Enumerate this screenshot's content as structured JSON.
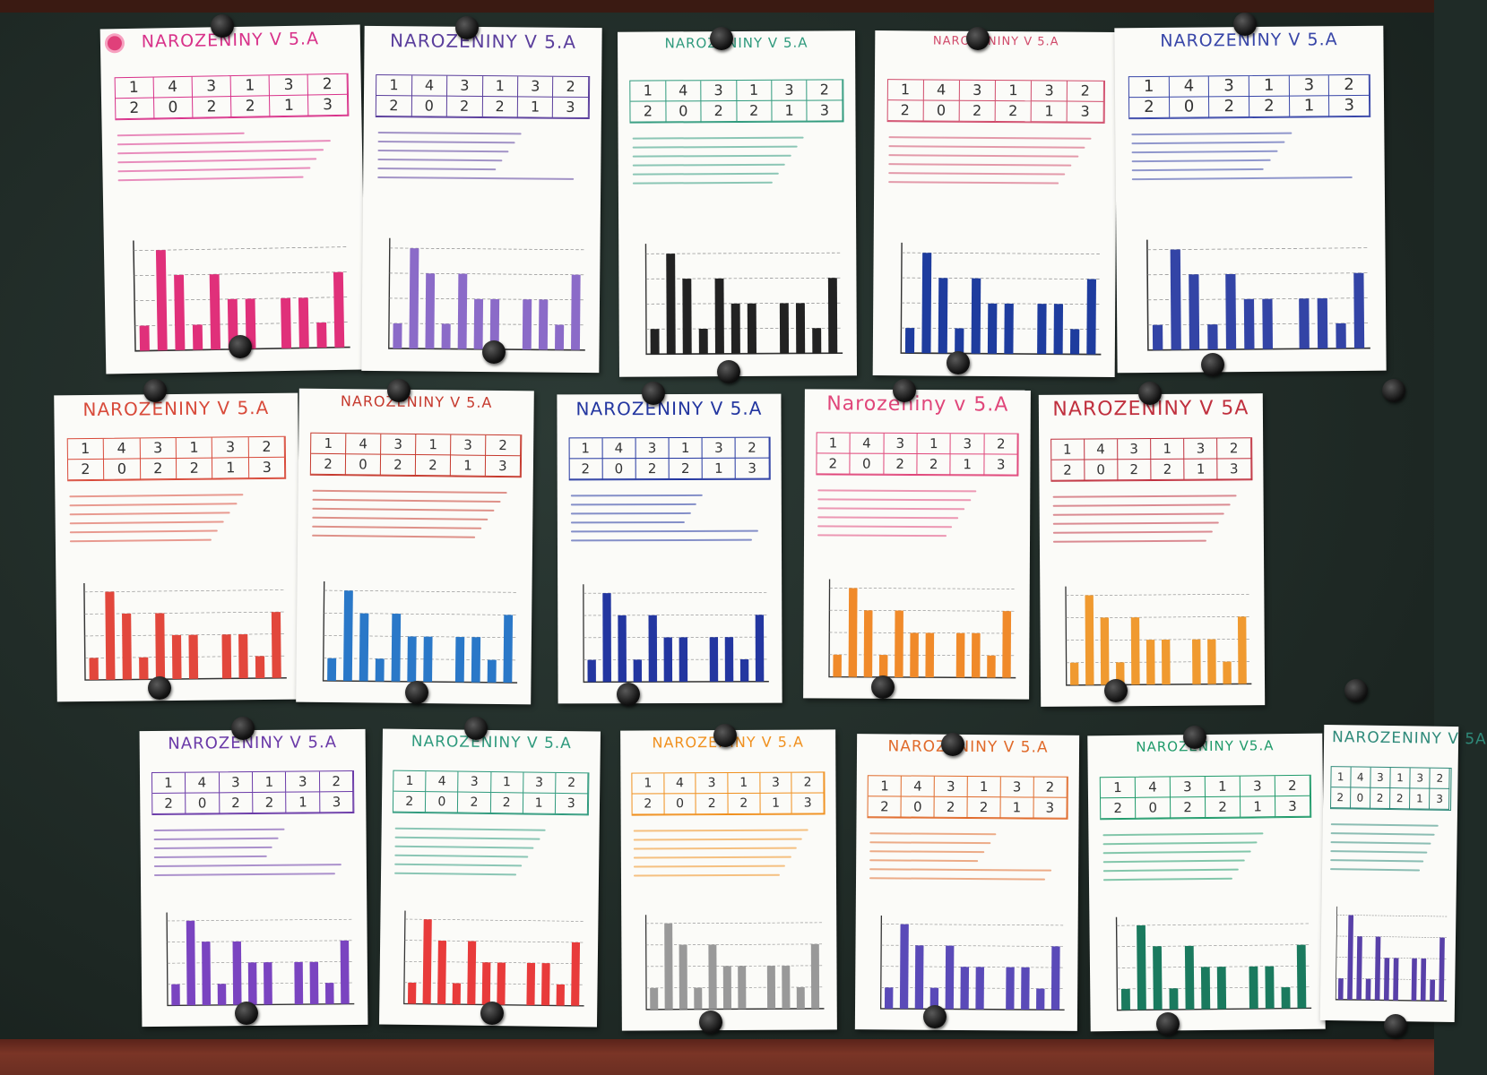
{
  "scene": "bulletin-board",
  "posters": [
    {
      "id": "p1",
      "title": "NAROZENINY V 5.A",
      "color": "#d8328a",
      "bars": [
        1,
        4,
        3,
        1,
        3,
        2,
        2,
        0,
        2,
        2,
        1,
        3
      ],
      "barColor": "#e0307a"
    },
    {
      "id": "p2",
      "title": "NAROZENINY V 5.A",
      "color": "#5a3e9c",
      "bars": [
        1,
        4,
        3,
        1,
        3,
        2,
        2,
        0,
        2,
        2,
        1,
        3
      ],
      "barColor": "#8b6bc8"
    },
    {
      "id": "p3",
      "title": "NAROZENINY V 5.A",
      "color": "#2f9a7d",
      "bars": [
        1,
        4,
        3,
        1,
        3,
        2,
        2,
        0,
        2,
        2,
        1,
        3
      ],
      "barColor": "#222222"
    },
    {
      "id": "p4",
      "title": "NAROZENINY V 5.A",
      "color": "#d04a6a",
      "bars": [
        1,
        4,
        3,
        1,
        3,
        2,
        2,
        0,
        2,
        2,
        1,
        3
      ],
      "barColor": "#1e3c9e"
    },
    {
      "id": "p5",
      "title": "NAROZENINY V 5.A",
      "color": "#3846a8",
      "bars": [
        1,
        4,
        3,
        1,
        3,
        2,
        2,
        0,
        2,
        2,
        1,
        3
      ],
      "barColor": "#3344a6"
    },
    {
      "id": "p6",
      "title": "NAROZENINY V 5.A",
      "color": "#d84a3a",
      "bars": [
        1,
        4,
        3,
        1,
        3,
        2,
        2,
        0,
        2,
        2,
        1,
        3
      ],
      "barColor": "#e2473c"
    },
    {
      "id": "p7",
      "title": "NAROZENINY V 5.A",
      "color": "#c63a2e",
      "bars": [
        1,
        4,
        3,
        1,
        3,
        2,
        2,
        0,
        2,
        2,
        1,
        3
      ],
      "barColor": "#2a78c8"
    },
    {
      "id": "p8",
      "title": "NAROZENINY V 5.A",
      "color": "#2336a0",
      "bars": [
        1,
        4,
        3,
        1,
        3,
        2,
        2,
        0,
        2,
        2,
        1,
        3
      ],
      "barColor": "#2336a0"
    },
    {
      "id": "p9",
      "title": "Narozeniny v 5.A",
      "color": "#e0467a",
      "bars": [
        1,
        4,
        3,
        1,
        3,
        2,
        2,
        0,
        2,
        2,
        1,
        3
      ],
      "barColor": "#f08a2a"
    },
    {
      "id": "p10",
      "title": "NAROZENINY V 5A",
      "color": "#c0303e",
      "bars": [
        1,
        4,
        3,
        1,
        3,
        2,
        2,
        0,
        2,
        2,
        1,
        3
      ],
      "barColor": "#f09a30"
    },
    {
      "id": "p11",
      "title": "NAROZENINY V 5.A",
      "color": "#6a3aa8",
      "bars": [
        1,
        4,
        3,
        1,
        3,
        2,
        2,
        0,
        2,
        2,
        1,
        3
      ],
      "barColor": "#7a44c0"
    },
    {
      "id": "p12",
      "title": "NAROZENINY V 5.A",
      "color": "#2f9a7d",
      "bars": [
        1,
        4,
        3,
        1,
        3,
        2,
        2,
        0,
        2,
        2,
        1,
        3
      ],
      "barColor": "#e83b3b"
    },
    {
      "id": "p13",
      "title": "NAROZENINY V 5.A",
      "color": "#f0901e",
      "bars": [
        1,
        4,
        3,
        1,
        3,
        2,
        2,
        0,
        2,
        2,
        1,
        3
      ],
      "barColor": "#999999"
    },
    {
      "id": "p14",
      "title": "NAROZENINY V 5.A",
      "color": "#e06a2a",
      "bars": [
        1,
        4,
        3,
        1,
        3,
        2,
        2,
        0,
        2,
        2,
        1,
        3
      ],
      "barColor": "#5a4ab8"
    },
    {
      "id": "p15",
      "title": "NAROZENINY V5.A",
      "color": "#1f9a6a",
      "bars": [
        1,
        4,
        3,
        1,
        3,
        2,
        2,
        0,
        2,
        2,
        1,
        3
      ],
      "barColor": "#1a7a5e"
    },
    {
      "id": "p16",
      "title": "NAROZENINY V 5A",
      "color": "#2f8a7a",
      "bars": [
        1,
        4,
        3,
        1,
        3,
        2,
        2,
        0,
        2,
        2,
        1,
        3
      ],
      "barColor": "#5840a8"
    }
  ]
}
